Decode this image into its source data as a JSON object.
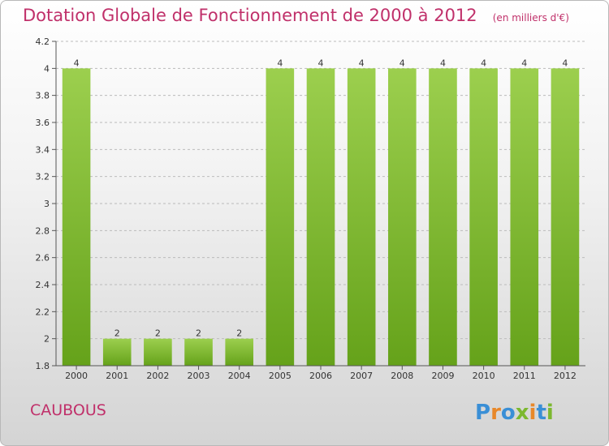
{
  "title": "Dotation Globale de Fonctionnement de 2000 à 2012",
  "subtitle": "(en milliers d'€)",
  "commune": "CAUBOUS",
  "brand": "Proxiti",
  "colors": {
    "title": "#c0306a",
    "bar_top": "#9ccf4e",
    "bar_bottom": "#65a21a",
    "axis": "#555555",
    "grid": "#bbbbbb"
  },
  "chart_data": {
    "type": "bar",
    "title": "Dotation Globale de Fonctionnement de 2000 à 2012",
    "subtitle": "(en milliers d'€)",
    "categories": [
      "2000",
      "2001",
      "2002",
      "2003",
      "2004",
      "2005",
      "2006",
      "2007",
      "2008",
      "2009",
      "2010",
      "2011",
      "2012"
    ],
    "values": [
      4,
      2,
      2,
      2,
      2,
      4,
      4,
      4,
      4,
      4,
      4,
      4,
      4
    ],
    "data_labels": [
      "4",
      "2",
      "2",
      "2",
      "2",
      "4",
      "4",
      "4",
      "4",
      "4",
      "4",
      "4",
      "4"
    ],
    "ylim": [
      1.8,
      4.2
    ],
    "yticks": [
      1.8,
      2,
      2.2,
      2.4,
      2.6,
      2.8,
      3,
      3.2,
      3.4,
      3.6,
      3.8,
      4,
      4.2
    ],
    "ytick_labels": [
      "1.8",
      "2",
      "2.2",
      "2.4",
      "2.6",
      "2.8",
      "3",
      "3.2",
      "3.4",
      "3.6",
      "3.8",
      "4",
      "4.2"
    ],
    "grid": "horizontal dashed",
    "legend": "none"
  }
}
